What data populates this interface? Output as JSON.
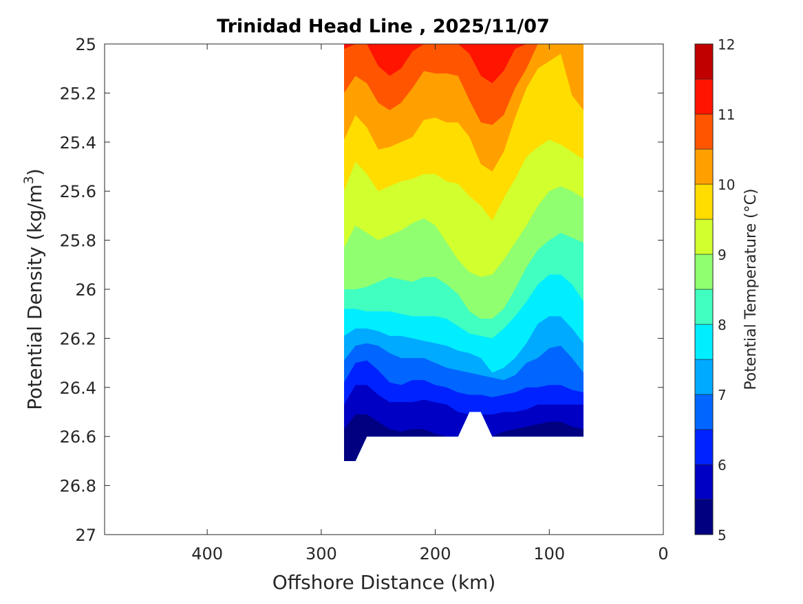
{
  "chart_data": {
    "type": "contourf",
    "title": "Trinidad Head Line , 2025/11/07",
    "xlabel": "Offshore Distance (km)",
    "ylabel": "Potential Density (kg/m",
    "ylabel_sup": "3",
    "ylabel_end": ")",
    "colorbar_label": "Potential Temperature (°C)",
    "xlim": [
      0,
      490
    ],
    "x_reversed": true,
    "ylim": [
      25,
      27
    ],
    "y_reversed": true,
    "xticks": [
      400,
      300,
      200,
      100,
      0
    ],
    "xtick_labels": [
      "400",
      "300",
      "200",
      "100",
      "0"
    ],
    "yticks": [
      25,
      25.2,
      25.4,
      25.6,
      25.8,
      26,
      26.2,
      26.4,
      26.6,
      26.8,
      27
    ],
    "ytick_labels": [
      "25",
      "25.2",
      "25.4",
      "25.6",
      "25.8",
      "26",
      "26.2",
      "26.4",
      "26.6",
      "26.8",
      "27"
    ],
    "clim": [
      5,
      12
    ],
    "colorbar_ticks": [
      5,
      6,
      7,
      8,
      9,
      10,
      11,
      12
    ],
    "colorbar_tick_labels": [
      "5",
      "6",
      "7",
      "8",
      "9",
      "10",
      "11",
      "12"
    ],
    "band_edges": [
      5,
      5.5,
      6,
      6.5,
      7,
      7.5,
      8,
      8.5,
      9,
      9.5,
      10,
      10.5,
      11,
      11.5,
      12
    ],
    "band_colors": [
      "#000080",
      "#0000c4",
      "#0022ff",
      "#0066ff",
      "#00aaff",
      "#00eeff",
      "#40ffc0",
      "#90ff70",
      "#d2ff2e",
      "#ffdd00",
      "#ffa000",
      "#ff5500",
      "#ff1400",
      "#c00000"
    ],
    "top_band_color": "#ff1400",
    "stations_km": [
      280,
      270,
      260,
      250,
      240,
      230,
      220,
      210,
      200,
      190,
      180,
      170,
      160,
      150,
      140,
      130,
      120,
      110,
      100,
      90,
      80,
      70
    ],
    "isotherm_density": [
      {
        "level": 11,
        "below_color": "#ff5500",
        "density": [
          25.02,
          25,
          25,
          25.09,
          25.13,
          25.1,
          25.03,
          25,
          25,
          25,
          25,
          25.04,
          25.13,
          25.16,
          25.11,
          25.02,
          25,
          25,
          25,
          25,
          25,
          25
        ]
      },
      {
        "level": 10.5,
        "below_color": "#ffa000",
        "density": [
          25.2,
          25.13,
          25.16,
          25.24,
          25.27,
          25.24,
          25.18,
          25.11,
          25.12,
          25.12,
          25.13,
          25.23,
          25.32,
          25.33,
          25.29,
          25.18,
          25.1,
          25,
          25,
          25,
          25,
          25
        ]
      },
      {
        "level": 10,
        "below_color": "#ffdd00",
        "density": [
          25.39,
          25.29,
          25.34,
          25.43,
          25.42,
          25.4,
          25.38,
          25.31,
          25.3,
          25.32,
          25.32,
          25.38,
          25.49,
          25.52,
          25.44,
          25.3,
          25.18,
          25.1,
          25.07,
          25.04,
          25.21,
          25.27
        ]
      },
      {
        "level": 9.5,
        "below_color": "#d2ff2e",
        "density": [
          25.6,
          25.48,
          25.53,
          25.6,
          25.58,
          25.56,
          25.55,
          25.53,
          25.53,
          25.56,
          25.57,
          25.62,
          25.66,
          25.72,
          25.63,
          25.55,
          25.46,
          25.42,
          25.39,
          25.41,
          25.44,
          25.47
        ]
      },
      {
        "level": 9,
        "below_color": "#90ff70",
        "density": [
          25.83,
          25.74,
          25.77,
          25.8,
          25.78,
          25.76,
          25.73,
          25.71,
          25.74,
          25.81,
          25.88,
          25.93,
          25.95,
          25.94,
          25.88,
          25.81,
          25.74,
          25.66,
          25.6,
          25.58,
          25.6,
          25.63
        ]
      },
      {
        "level": 8.5,
        "below_color": "#40ffc0",
        "density": [
          26.0,
          26.0,
          25.99,
          25.97,
          25.95,
          25.96,
          25.97,
          25.95,
          25.95,
          25.98,
          26.02,
          26.09,
          26.12,
          26.12,
          26.08,
          26.0,
          25.91,
          25.84,
          25.8,
          25.77,
          25.79,
          25.81
        ]
      },
      {
        "level": 8,
        "below_color": "#00eeff",
        "density": [
          26.08,
          26.08,
          26.09,
          26.09,
          26.09,
          26.1,
          26.11,
          26.11,
          26.11,
          26.12,
          26.15,
          26.18,
          26.19,
          26.2,
          26.16,
          26.11,
          26.05,
          25.98,
          25.94,
          25.94,
          25.98,
          26.05
        ]
      },
      {
        "level": 7.5,
        "below_color": "#00aaff",
        "density": [
          26.19,
          26.16,
          26.16,
          26.17,
          26.19,
          26.19,
          26.2,
          26.21,
          26.22,
          26.23,
          26.25,
          26.26,
          26.28,
          26.34,
          26.32,
          26.28,
          26.22,
          26.14,
          26.11,
          26.11,
          26.16,
          26.22
        ]
      },
      {
        "level": 7,
        "below_color": "#0066ff",
        "density": [
          26.29,
          26.23,
          26.22,
          26.23,
          26.26,
          26.28,
          26.28,
          26.28,
          26.3,
          26.32,
          26.33,
          26.34,
          26.35,
          26.36,
          26.37,
          26.35,
          26.3,
          26.28,
          26.24,
          26.23,
          26.28,
          26.34
        ]
      },
      {
        "level": 6.5,
        "below_color": "#0022ff",
        "density": [
          26.38,
          26.3,
          26.29,
          26.33,
          26.38,
          26.39,
          26.37,
          26.37,
          26.39,
          26.4,
          26.42,
          26.43,
          26.43,
          26.44,
          26.43,
          26.42,
          26.4,
          26.4,
          26.39,
          26.39,
          26.41,
          26.42
        ]
      },
      {
        "level": 6,
        "below_color": "#0000c4",
        "density": [
          26.47,
          26.39,
          26.39,
          26.43,
          26.46,
          26.46,
          26.46,
          26.45,
          26.46,
          26.47,
          26.5,
          26.51,
          26.51,
          26.51,
          26.5,
          26.5,
          26.49,
          26.47,
          26.47,
          26.47,
          26.47,
          26.47
        ]
      },
      {
        "level": 5.5,
        "below_color": "#000080",
        "density": [
          26.57,
          26.51,
          26.51,
          26.54,
          26.57,
          26.58,
          26.57,
          26.57,
          26.59,
          26.6,
          26.6,
          26.6,
          26.6,
          26.6,
          26.58,
          26.57,
          26.56,
          26.55,
          26.54,
          26.54,
          26.56,
          26.57
        ]
      }
    ],
    "data_extent_km_density": [
      [
        280,
        25
      ],
      [
        70,
        25
      ],
      [
        70,
        26.6
      ],
      [
        150,
        26.6
      ],
      [
        160,
        26.5
      ],
      [
        170,
        26.5
      ],
      [
        180,
        26.6
      ],
      [
        260,
        26.6
      ],
      [
        270,
        26.7
      ],
      [
        280,
        26.7
      ]
    ],
    "grid": false,
    "colorbar_position": "right"
  }
}
